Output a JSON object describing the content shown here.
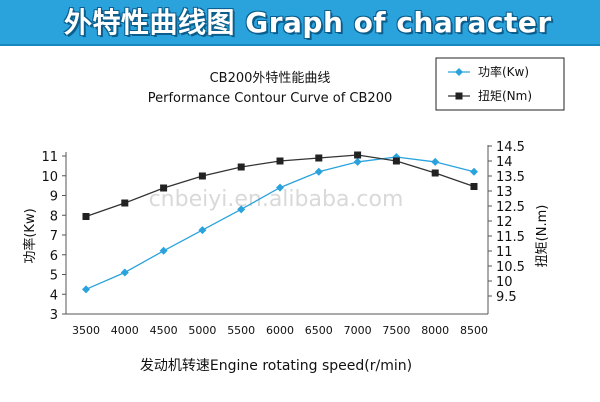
{
  "banner": {
    "title": "外特性曲线图 Graph of character"
  },
  "colors": {
    "banner_bg": "#2aa3dd",
    "power_series": "#2aa3dd",
    "torque_series": "#333333"
  },
  "chart_data": {
    "type": "line",
    "title": "CB200外特性能曲线",
    "subtitle": "Performance Contour Curve of CB200",
    "xlabel": "发动机转速Engine rotating speed(r/min)",
    "x": [
      3500,
      4000,
      4500,
      5000,
      5500,
      6000,
      6500,
      7000,
      7500,
      8000,
      8500
    ],
    "x_tick_labels": [
      "3500",
      "4000",
      "4500",
      "5000",
      "5500",
      "6000",
      "6500",
      "7000",
      "7500",
      "8000",
      "8500"
    ],
    "y_left": {
      "label": "功率(Kw)",
      "range": [
        3,
        11
      ],
      "ticks": [
        "3",
        "4",
        "5",
        "6",
        "7",
        "8",
        "9",
        "10",
        "11"
      ]
    },
    "y_right": {
      "label": "扭矩(N.m)",
      "range": [
        9.5,
        14.5
      ],
      "ticks": [
        "9.5",
        "10",
        "10.5",
        "11",
        "11.5",
        "12",
        "12.5",
        "13",
        "13.5",
        "14",
        "14.5"
      ]
    },
    "series": [
      {
        "name": "功率(Kw)",
        "axis": "left",
        "marker": "diamond",
        "color": "#2aa3dd",
        "values": [
          4.25,
          5.1,
          6.2,
          7.25,
          8.3,
          9.4,
          10.2,
          10.7,
          10.95,
          10.7,
          10.2
        ]
      },
      {
        "name": "扭矩(Nm)",
        "axis": "right",
        "marker": "square",
        "color": "#333333",
        "values": [
          12.15,
          12.6,
          13.1,
          13.5,
          13.8,
          14.0,
          14.1,
          14.2,
          14.0,
          13.6,
          13.15
        ]
      }
    ],
    "watermark": "cnbeiyi.en.alibaba.com",
    "legend_position": "top-right",
    "grid": false
  }
}
